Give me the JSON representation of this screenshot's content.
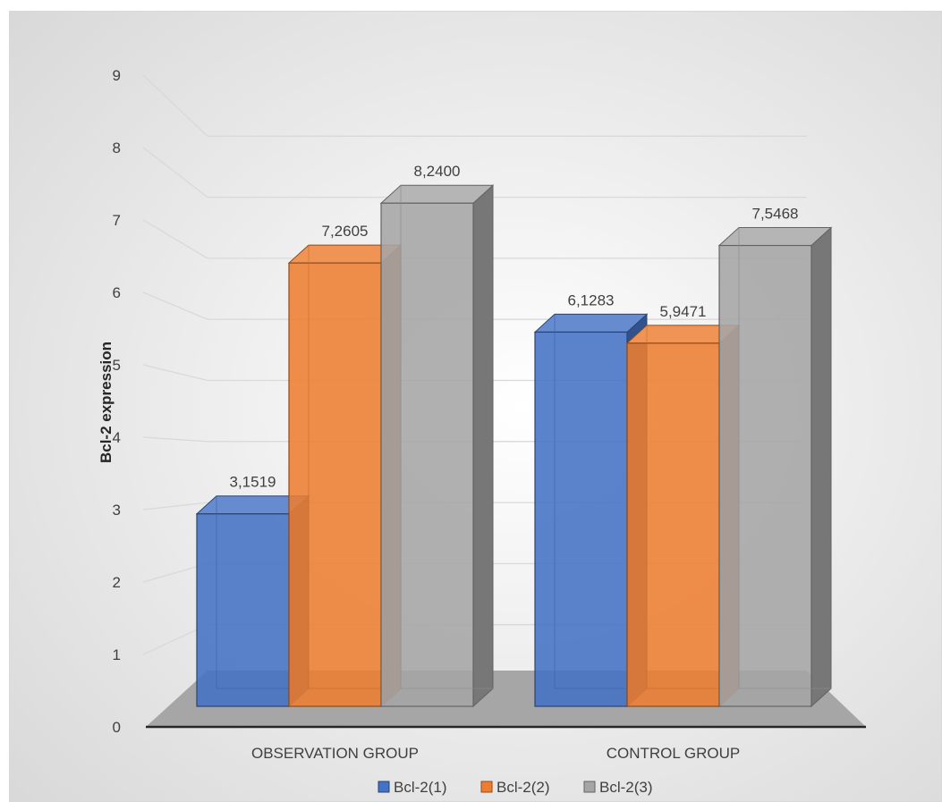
{
  "chart_data": {
    "type": "bar",
    "view": "3d-clustered-column",
    "title": "",
    "xlabel": "",
    "ylabel": "Bcl-2 expression",
    "ylim": [
      0,
      9
    ],
    "yticks": [
      "0",
      "1",
      "2",
      "3",
      "4",
      "5",
      "6",
      "7",
      "8",
      "9"
    ],
    "grid": true,
    "legend": "bottom",
    "categories": [
      "OBSERVATION GROUP",
      "CONTROL GROUP"
    ],
    "series": [
      {
        "name": "Bcl-2(1)",
        "color": "#4472C4",
        "values": [
          3.1519,
          6.1283
        ],
        "labels": [
          "3,1519",
          "6,1283"
        ]
      },
      {
        "name": "Bcl-2(2)",
        "color": "#ED7D31",
        "values": [
          7.2605,
          5.9471
        ],
        "labels": [
          "7,2605",
          "5,9471"
        ]
      },
      {
        "name": "Bcl-2(3)",
        "color": "#A5A5A5",
        "values": [
          8.24,
          7.5468
        ],
        "labels": [
          "8,2400",
          "7,5468"
        ]
      }
    ]
  }
}
